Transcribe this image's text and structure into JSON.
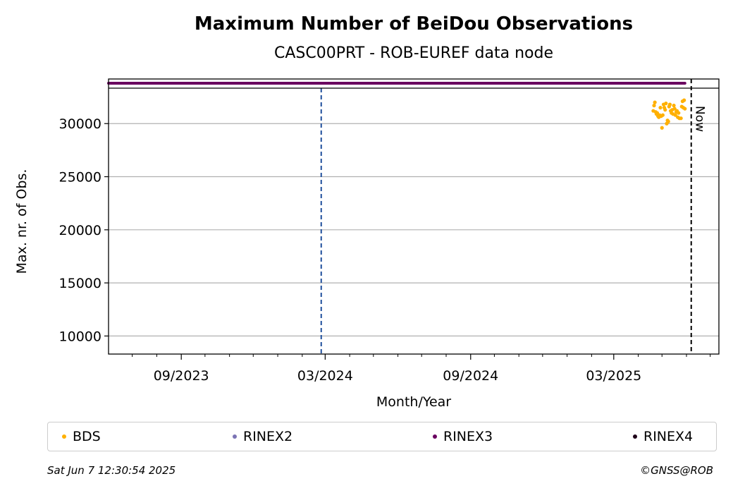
{
  "footer": {
    "timestamp": "Sat Jun  7 12:30:54 2025",
    "copyright": "©GNSS@ROB"
  },
  "chart_data": {
    "type": "scatter",
    "title": "Maximum Number of BeiDou Observations",
    "subtitle": "CASC00PRT - ROB-EUREF data node",
    "xlabel": "Month/Year",
    "ylabel": "Max. nr. of Obs.",
    "xlim": [
      "2023-06-01",
      "2025-07-12"
    ],
    "ylim": [
      8300,
      34200
    ],
    "yticks": [
      10000,
      15000,
      20000,
      25000,
      30000
    ],
    "xticks": [
      {
        "date": "2023-09-01",
        "label": "09/2023"
      },
      {
        "date": "2024-03-01",
        "label": "03/2024"
      },
      {
        "date": "2024-09-01",
        "label": "09/2024"
      },
      {
        "date": "2025-03-01",
        "label": "03/2025"
      }
    ],
    "grid": "y",
    "colors": {
      "BDS": "#ffb000",
      "RINEX2": "#7b73b4",
      "RINEX3": "#6a0060",
      "RINEX4": "#1e0018",
      "event_line": "#1f4e9c"
    },
    "legend": {
      "placement": "bottom",
      "entries": [
        "BDS",
        "RINEX2",
        "RINEX3",
        "RINEX4"
      ]
    },
    "annotations": {
      "event_line_date": "2024-02-25",
      "now_date": "2025-06-07",
      "now_label": "Now"
    },
    "series": [
      {
        "name": "RINEX3",
        "timeline": true,
        "ranges": [
          [
            "2023-06-01",
            "2025-01-31"
          ],
          [
            "2025-02-01",
            "2025-05-25"
          ],
          [
            "2025-05-26",
            "2025-05-30"
          ]
        ]
      },
      {
        "name": "BDS",
        "points": [
          [
            "2025-04-20",
            31200
          ],
          [
            "2025-04-21",
            31700
          ],
          [
            "2025-04-22",
            32000
          ],
          [
            "2025-04-23",
            31100
          ],
          [
            "2025-04-24",
            30900
          ],
          [
            "2025-04-25",
            31000
          ],
          [
            "2025-04-26",
            30700
          ],
          [
            "2025-04-27",
            30600
          ],
          [
            "2025-04-28",
            30800
          ],
          [
            "2025-04-29",
            31500
          ],
          [
            "2025-04-30",
            30700
          ],
          [
            "2025-05-01",
            29600
          ],
          [
            "2025-05-02",
            30800
          ],
          [
            "2025-05-03",
            31800
          ],
          [
            "2025-05-04",
            31500
          ],
          [
            "2025-05-05",
            31300
          ],
          [
            "2025-05-06",
            31900
          ],
          [
            "2025-05-07",
            30000
          ],
          [
            "2025-05-08",
            30300
          ],
          [
            "2025-05-09",
            30200
          ],
          [
            "2025-05-10",
            31600
          ],
          [
            "2025-05-11",
            31800
          ],
          [
            "2025-05-12",
            31200
          ],
          [
            "2025-05-13",
            31000
          ],
          [
            "2025-05-14",
            31300
          ],
          [
            "2025-05-15",
            30900
          ],
          [
            "2025-05-16",
            31700
          ],
          [
            "2025-05-17",
            31400
          ],
          [
            "2025-05-18",
            30800
          ],
          [
            "2025-05-19",
            31100
          ],
          [
            "2025-05-20",
            31200
          ],
          [
            "2025-05-21",
            30600
          ],
          [
            "2025-05-22",
            31000
          ],
          [
            "2025-05-23",
            30500
          ],
          [
            "2025-05-25",
            30500
          ],
          [
            "2025-05-26",
            31600
          ],
          [
            "2025-05-27",
            32100
          ],
          [
            "2025-05-28",
            31500
          ],
          [
            "2025-05-29",
            32200
          ],
          [
            "2025-05-30",
            31400
          ]
        ]
      }
    ]
  }
}
